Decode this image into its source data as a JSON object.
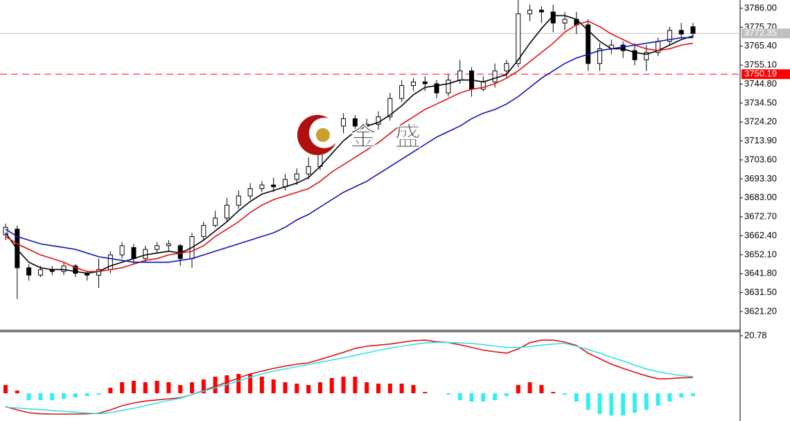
{
  "chart_data": [
    {
      "type": "candlestick",
      "watermark": "金 盛",
      "up_color": "#ffffff",
      "down_color": "#000000",
      "open": [
        3663,
        3666,
        3645,
        3641,
        3644,
        3643,
        3646,
        3642,
        3641,
        3644,
        3652,
        3656,
        3650,
        3655,
        3657,
        3657,
        3650,
        3662,
        3668,
        3672,
        3679,
        3684,
        3688,
        3690,
        3689,
        3693,
        3696,
        3700,
        3714,
        3722,
        3726,
        3722,
        3723,
        3727,
        3737,
        3744,
        3746,
        3745,
        3740,
        3747,
        3752,
        3742,
        3746,
        3752,
        3756,
        3783,
        3785,
        3784,
        3778,
        3780,
        3777,
        3756,
        3764,
        3766,
        3763,
        3758,
        3762,
        3768,
        3774,
        3776
      ],
      "high": [
        3669,
        3668,
        3647,
        3646,
        3646,
        3648,
        3647,
        3643,
        3650,
        3654,
        3659,
        3658,
        3657,
        3659,
        3660,
        3658,
        3664,
        3670,
        3676,
        3683,
        3687,
        3691,
        3692,
        3694,
        3696,
        3699,
        3705,
        3718,
        3725,
        3729,
        3728,
        3726,
        3730,
        3740,
        3747,
        3748,
        3749,
        3747,
        3750,
        3758,
        3754,
        3749,
        3756,
        3758,
        3791,
        3788,
        3787,
        3788,
        3784,
        3784,
        3780,
        3767,
        3769,
        3768,
        3767,
        3766,
        3770,
        3776,
        3778,
        3778
      ],
      "low": [
        3660,
        3628,
        3638,
        3640,
        3641,
        3641,
        3640,
        3638,
        3634,
        3642,
        3650,
        3647,
        3648,
        3653,
        3654,
        3646,
        3645,
        3660,
        3667,
        3670,
        3677,
        3682,
        3686,
        3686,
        3687,
        3690,
        3693,
        3698,
        3710,
        3718,
        3719,
        3720,
        3720,
        3725,
        3735,
        3741,
        3741,
        3737,
        3738,
        3745,
        3738,
        3741,
        3743,
        3748,
        3754,
        3779,
        3778,
        3773,
        3774,
        3772,
        3752,
        3752,
        3761,
        3759,
        3755,
        3752,
        3760,
        3766,
        3770,
        3770
      ],
      "close": [
        3667,
        3645,
        3641,
        3644,
        3643,
        3646,
        3642,
        3641,
        3644,
        3652,
        3657,
        3650,
        3655,
        3657,
        3658,
        3650,
        3662,
        3668,
        3672,
        3679,
        3684,
        3688,
        3690,
        3689,
        3693,
        3696,
        3700,
        3714,
        3722,
        3726,
        3722,
        3723,
        3727,
        3737,
        3744,
        3746,
        3745,
        3740,
        3747,
        3752,
        3742,
        3746,
        3752,
        3756,
        3783,
        3785,
        3784,
        3778,
        3780,
        3777,
        3756,
        3764,
        3766,
        3763,
        3758,
        3762,
        3768,
        3774,
        3772,
        3772.35
      ],
      "series": [
        {
          "color": "#000000",
          "values": [
            3664,
            3655,
            3648,
            3645,
            3644,
            3644,
            3643,
            3642,
            3643,
            3646,
            3648,
            3650,
            3652,
            3653,
            3654,
            3653,
            3656,
            3660,
            3665,
            3670,
            3676,
            3681,
            3685,
            3687,
            3689,
            3691,
            3694,
            3700,
            3707,
            3714,
            3719,
            3722,
            3724,
            3728,
            3733,
            3739,
            3743,
            3744,
            3745,
            3747,
            3747,
            3746,
            3748,
            3750,
            3758,
            3767,
            3775,
            3782,
            3782,
            3780,
            3774,
            3768,
            3764,
            3764,
            3762,
            3761,
            3763,
            3766,
            3769,
            3771
          ]
        },
        {
          "color": "#e01010",
          "values": [
            3662,
            3658,
            3655,
            3652,
            3650,
            3648,
            3645,
            3643,
            3643,
            3644,
            3645,
            3647,
            3649,
            3650,
            3652,
            3653,
            3654,
            3657,
            3662,
            3666,
            3670,
            3675,
            3679,
            3682,
            3684,
            3686,
            3688,
            3692,
            3697,
            3701,
            3705,
            3709,
            3713,
            3718,
            3723,
            3727,
            3731,
            3734,
            3737,
            3740,
            3742,
            3743,
            3745,
            3748,
            3752,
            3757,
            3762,
            3767,
            3773,
            3777,
            3779,
            3776,
            3772,
            3769,
            3766,
            3764,
            3763,
            3764,
            3766,
            3767
          ]
        },
        {
          "color": "#1010c0",
          "values": [
            3666,
            3662,
            3660,
            3658,
            3657,
            3656,
            3655,
            3653,
            3651,
            3650,
            3649,
            3648,
            3648,
            3648,
            3648,
            3649,
            3650,
            3652,
            3654,
            3656,
            3658,
            3660,
            3662,
            3664,
            3667,
            3671,
            3674,
            3678,
            3682,
            3686,
            3689,
            3692,
            3696,
            3700,
            3704,
            3708,
            3712,
            3716,
            3719,
            3722,
            3726,
            3729,
            3731,
            3734,
            3738,
            3743,
            3748,
            3752,
            3756,
            3759,
            3761,
            3763,
            3764,
            3765,
            3766,
            3767,
            3768,
            3769,
            3770,
            3770
          ]
        }
      ],
      "price_lines": [
        {
          "value": 3772.35,
          "label": "3772.35",
          "color": "#c0c0c0",
          "style": "solid"
        },
        {
          "value": 3750.19,
          "label": "3750.19",
          "color": "#ff0000",
          "style": "dashed"
        }
      ],
      "ylim": [
        3611.4,
        3790.5
      ],
      "yticks": [
        {
          "value": 3786.0,
          "label": "3786.00"
        },
        {
          "value": 3775.7,
          "label": "3775.70"
        },
        {
          "value": 3765.4,
          "label": "3765.40"
        },
        {
          "value": 3755.1,
          "label": "3755.10"
        },
        {
          "value": 3744.8,
          "label": "3744.80"
        },
        {
          "value": 3734.5,
          "label": "3734.50"
        },
        {
          "value": 3724.2,
          "label": "3724.20"
        },
        {
          "value": 3713.9,
          "label": "3713.90"
        },
        {
          "value": 3703.6,
          "label": "3703.60"
        },
        {
          "value": 3693.3,
          "label": "3693.30"
        },
        {
          "value": 3683.0,
          "label": "3683.00"
        },
        {
          "value": 3672.7,
          "label": "3672.70"
        },
        {
          "value": 3662.4,
          "label": "3662.40"
        },
        {
          "value": 3652.1,
          "label": "3652.10"
        },
        {
          "value": 3641.8,
          "label": "3641.80"
        },
        {
          "value": 3631.5,
          "label": "3631.50"
        },
        {
          "value": 3621.2,
          "label": "3621.20"
        }
      ]
    },
    {
      "type": "macd",
      "histogram": [
        3,
        1,
        -2.5,
        -2.5,
        -2.5,
        -2,
        -1.5,
        -1,
        -0.5,
        2,
        4,
        4.5,
        4,
        4.5,
        4,
        3,
        4,
        5,
        6,
        6.5,
        7,
        7,
        6,
        5,
        4,
        3.5,
        3,
        4,
        5.5,
        6,
        6,
        4,
        3.5,
        3.5,
        3.5,
        3,
        0.5,
        0,
        -0.5,
        -2.5,
        -3,
        -3,
        -2.5,
        -1,
        3,
        4,
        3,
        0.5,
        -0.5,
        -3,
        -6,
        -7.5,
        -8,
        -8,
        -7,
        -6,
        -4.5,
        -3,
        -1.5,
        -1
      ],
      "up_color": "#ff0000",
      "down_color": "#33f0f0",
      "series": [
        {
          "color": "#e01010",
          "values": [
            -4.8,
            -6,
            -7,
            -7.4,
            -7.5,
            -7.5,
            -7.5,
            -7.4,
            -7.2,
            -6,
            -4.5,
            -3.5,
            -2.8,
            -2.4,
            -2,
            -1.6,
            -0.5,
            1,
            2.5,
            4,
            5.5,
            7,
            8,
            9,
            9.8,
            10.5,
            11,
            12.2,
            13.5,
            14.8,
            16.2,
            17,
            17.4,
            17.8,
            18.4,
            19,
            19.2,
            18.6,
            18.3,
            17.5,
            16.6,
            15.6,
            15,
            14.5,
            16,
            18.3,
            19.2,
            19.2,
            18.5,
            17.3,
            14.5,
            12.5,
            10.5,
            9,
            7.6,
            6.3,
            5.2,
            5.3,
            5.6,
            5.7
          ]
        },
        {
          "color": "#33e0e8",
          "values": [
            -5,
            -5.3,
            -5.6,
            -5.9,
            -6.2,
            -6.5,
            -6.8,
            -7.1,
            -7.4,
            -7,
            -6.2,
            -5.4,
            -4.5,
            -3.5,
            -2.6,
            -1.8,
            -0.5,
            0.8,
            2,
            3.2,
            4.5,
            5.8,
            7,
            8,
            8.8,
            9.6,
            10.4,
            11.2,
            12,
            12.8,
            13.7,
            14.6,
            15.5,
            16.3,
            17,
            17.6,
            18.2,
            18.4,
            18.3,
            18.2,
            18,
            17.6,
            17,
            16.6,
            16.5,
            16.9,
            17.4,
            17.8,
            18,
            17,
            15.8,
            14.5,
            13,
            11.7,
            10.2,
            8.8,
            7.8,
            7,
            6.4,
            6
          ]
        }
      ],
      "ylim": [
        -10,
        22.5
      ],
      "yticks": [
        20.78
      ]
    }
  ]
}
